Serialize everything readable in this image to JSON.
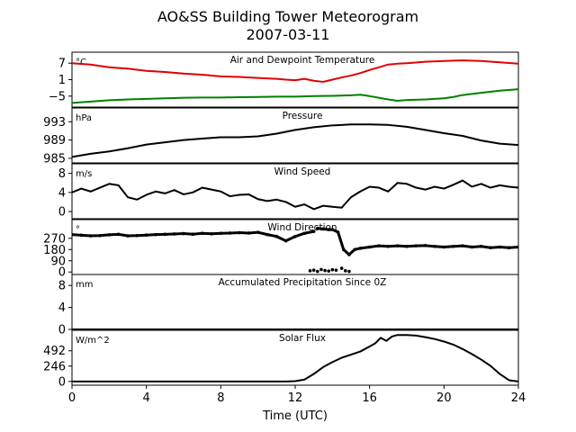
{
  "figure": {
    "title_line1": "AO&SS Building Tower Meteorogram",
    "title_line2": "2007-03-11",
    "xlabel": "Time (UTC)",
    "x_ticks": [
      0,
      4,
      8,
      12,
      16,
      20,
      24
    ],
    "x_range": [
      0,
      24
    ]
  },
  "chart_data": [
    {
      "type": "line",
      "title": "Air and Dewpoint Temperature",
      "unit": "°C",
      "ylim": [
        -9,
        11
      ],
      "y_ticks": [
        7,
        1,
        -5
      ],
      "y_tick_labels": [
        "7",
        "1",
        "−5"
      ],
      "series": [
        {
          "color": "#e00000",
          "x": [
            0,
            1,
            2,
            3,
            4,
            5,
            6,
            7,
            8,
            9,
            10,
            11,
            11.5,
            12,
            12.5,
            13,
            13.5,
            14,
            14.5,
            15,
            15.5,
            16,
            16.5,
            17,
            17.5,
            18,
            19,
            20,
            21,
            22,
            23,
            24
          ],
          "y": [
            7.0,
            6.5,
            5.5,
            5.0,
            4.2,
            3.8,
            3.2,
            2.8,
            2.2,
            2.0,
            1.6,
            1.3,
            1.0,
            0.8,
            1.3,
            0.6,
            0.2,
            1.0,
            1.8,
            2.5,
            3.4,
            4.5,
            5.5,
            6.5,
            6.8,
            7.0,
            7.5,
            7.8,
            8.0,
            7.8,
            7.3,
            6.8
          ]
        },
        {
          "color": "#008000",
          "x": [
            0,
            1,
            2,
            3,
            4,
            5,
            6,
            7,
            8,
            9,
            10,
            11,
            12,
            13,
            14,
            15,
            15.5,
            16,
            16.5,
            17,
            17.5,
            18,
            19,
            20,
            20.5,
            21,
            22,
            23,
            24
          ],
          "y": [
            -7.5,
            -7.0,
            -6.5,
            -6.2,
            -6.0,
            -5.8,
            -5.6,
            -5.5,
            -5.5,
            -5.4,
            -5.3,
            -5.2,
            -5.2,
            -5.0,
            -4.9,
            -4.7,
            -4.5,
            -5.0,
            -5.6,
            -6.2,
            -6.7,
            -6.4,
            -6.2,
            -5.8,
            -5.3,
            -4.6,
            -3.8,
            -3.0,
            -2.5
          ]
        }
      ]
    },
    {
      "type": "line",
      "title": "Pressure",
      "unit": "hPa",
      "ylim": [
        984,
        996
      ],
      "y_ticks": [
        993,
        989,
        985
      ],
      "y_tick_labels": [
        "993",
        "989",
        "985"
      ],
      "series": [
        {
          "color": "#000000",
          "x": [
            0,
            1,
            2,
            3,
            4,
            5,
            6,
            7,
            8,
            9,
            10,
            11,
            12,
            13,
            14,
            15,
            16,
            17,
            18,
            19,
            20,
            21,
            22,
            23,
            24
          ],
          "y": [
            985.3,
            986.0,
            986.5,
            987.2,
            988.0,
            988.5,
            989.0,
            989.3,
            989.6,
            989.6,
            989.8,
            990.4,
            991.2,
            991.8,
            992.2,
            992.4,
            992.4,
            992.3,
            991.9,
            991.2,
            990.5,
            989.9,
            988.9,
            988.2,
            987.9
          ]
        }
      ]
    },
    {
      "type": "line",
      "title": "Wind Speed",
      "unit": "m/s",
      "ylim": [
        -1.5,
        10
      ],
      "y_ticks": [
        8,
        4,
        0
      ],
      "y_tick_labels": [
        "8",
        "4",
        "0"
      ],
      "series": [
        {
          "color": "#000000",
          "x": [
            0,
            0.5,
            1,
            1.5,
            2,
            2.5,
            3,
            3.5,
            4,
            4.5,
            5,
            5.5,
            6,
            6.5,
            7,
            7.5,
            8,
            8.5,
            9,
            9.5,
            10,
            10.5,
            11,
            11.5,
            12,
            12.5,
            13,
            13.5,
            14,
            14.5,
            15,
            15.5,
            16,
            16.5,
            17,
            17.5,
            18,
            18.5,
            19,
            19.5,
            20,
            20.5,
            21,
            21.5,
            22,
            22.5,
            23,
            23.5,
            24
          ],
          "y": [
            4.0,
            4.8,
            4.2,
            5.0,
            5.8,
            5.5,
            3.0,
            2.5,
            3.5,
            4.2,
            3.8,
            4.5,
            3.6,
            4.0,
            5.0,
            4.6,
            4.2,
            3.2,
            3.5,
            3.6,
            2.6,
            2.2,
            2.5,
            2.0,
            1.0,
            1.5,
            0.5,
            1.2,
            1.0,
            0.8,
            3.0,
            4.2,
            5.2,
            5.0,
            4.2,
            6.0,
            5.8,
            5.0,
            4.6,
            5.2,
            4.8,
            5.6,
            6.5,
            5.2,
            5.8,
            5.0,
            5.5,
            5.2,
            5.0
          ]
        }
      ]
    },
    {
      "type": "scatter",
      "title": "Wind Direction",
      "unit": "°",
      "ylim": [
        -20,
        420
      ],
      "y_ticks": [
        270,
        180,
        90,
        0
      ],
      "y_tick_labels": [
        "270",
        "180",
        "90",
        "0"
      ],
      "series": [
        {
          "color": "#000000",
          "segments": [
            {
              "x": [
                0,
                0.5,
                1,
                1.5,
                2,
                2.5,
                3,
                3.5,
                4,
                4.5,
                5,
                5.5,
                6,
                6.5,
                7,
                7.5,
                8,
                8.5,
                9,
                9.5,
                10,
                10.5,
                11,
                11.5,
                12,
                12.5,
                13
              ],
              "y": [
                300,
                295,
                290,
                292,
                298,
                302,
                290,
                292,
                296,
                300,
                302,
                305,
                308,
                303,
                310,
                306,
                310,
                312,
                315,
                312,
                318,
                300,
                285,
                250,
                285,
                310,
                325
              ]
            },
            {
              "x": [
                13.2,
                13.5,
                13.8,
                14.0,
                14.3,
                14.6,
                14.9,
                15.2,
                15.5,
                16,
                16.5,
                17,
                17.5,
                18,
                18.5,
                19,
                19.5,
                20,
                20.5,
                21,
                21.5,
                22,
                22.5,
                23,
                23.5,
                24
              ],
              "y": [
                350,
                345,
                340,
                340,
                320,
                180,
                140,
                180,
                190,
                200,
                210,
                205,
                210,
                205,
                210,
                212,
                205,
                200,
                205,
                210,
                200,
                205,
                195,
                200,
                195,
                200
              ]
            }
          ],
          "low_points_x": [
            12.8,
            13.0,
            13.2,
            13.4,
            13.6,
            13.8,
            14.0,
            14.2,
            14.5,
            14.7,
            14.9
          ],
          "low_points_y": [
            10,
            15,
            5,
            20,
            12,
            8,
            18,
            15,
            30,
            10,
            5
          ]
        }
      ]
    },
    {
      "type": "line",
      "title": "Accumulated Precipitation Since 0Z",
      "unit": "mm",
      "ylim": [
        0,
        10
      ],
      "y_ticks": [
        8,
        4,
        0
      ],
      "y_tick_labels": [
        "8",
        "4",
        "0"
      ],
      "series": [
        {
          "color": "#000000",
          "x": [
            0,
            24
          ],
          "y": [
            0,
            0
          ]
        }
      ]
    },
    {
      "type": "line",
      "title": "Solar Flux",
      "unit": "W/m^2",
      "ylim": [
        -60,
        820
      ],
      "y_ticks": [
        492,
        246,
        0
      ],
      "y_tick_labels": [
        "492",
        "246",
        "0"
      ],
      "series": [
        {
          "color": "#000000",
          "x": [
            0,
            11.5,
            12,
            12.5,
            13,
            13.5,
            14,
            14.5,
            15,
            15.5,
            16,
            16.3,
            16.6,
            16.9,
            17.2,
            17.5,
            18,
            18.5,
            19,
            19.5,
            20,
            20.5,
            21,
            21.5,
            22,
            22.5,
            23,
            23.5,
            24
          ],
          "y": [
            0,
            0,
            5,
            30,
            120,
            230,
            310,
            380,
            430,
            480,
            560,
            610,
            700,
            650,
            720,
            745,
            745,
            735,
            710,
            680,
            640,
            590,
            520,
            440,
            350,
            250,
            120,
            20,
            0
          ]
        }
      ]
    }
  ]
}
